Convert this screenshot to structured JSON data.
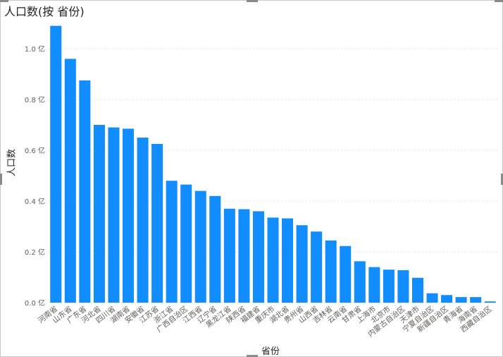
{
  "chart_data": {
    "type": "bar",
    "title": "人口数(按 省份)",
    "xlabel": "省份",
    "ylabel": "人口数",
    "ylim": [
      0,
      1.1
    ],
    "yticks": [
      "0.0 亿",
      "0.2 亿",
      "0.4 亿",
      "0.6 亿",
      "0.8 亿",
      "1.0 亿"
    ],
    "ytick_values": [
      0,
      0.2,
      0.4,
      0.6,
      0.8,
      1.0
    ],
    "grid": true,
    "bar_color": "#118DFF",
    "categories": [
      "河南省",
      "山东省",
      "广东省",
      "河北省",
      "四川省",
      "湖南省",
      "安徽省",
      "江苏省",
      "浙江省",
      "广西自治区",
      "江西省",
      "辽宁省",
      "黑龙江省",
      "陕西省",
      "福建省",
      "重庆市",
      "湖北省",
      "贵州省",
      "山西省",
      "吉林省",
      "云南省",
      "甘肃省",
      "上海市",
      "北京市",
      "内蒙古自治区",
      "天津市",
      "宁夏自治区",
      "新疆自治区",
      "青海省",
      "海南省",
      "西藏自治区"
    ],
    "values": [
      1.09,
      0.96,
      0.875,
      0.7,
      0.69,
      0.685,
      0.65,
      0.625,
      0.48,
      0.465,
      0.44,
      0.42,
      0.37,
      0.368,
      0.36,
      0.335,
      0.332,
      0.305,
      0.28,
      0.245,
      0.223,
      0.163,
      0.14,
      0.13,
      0.128,
      0.098,
      0.037,
      0.03,
      0.022,
      0.022,
      0.005
    ]
  }
}
